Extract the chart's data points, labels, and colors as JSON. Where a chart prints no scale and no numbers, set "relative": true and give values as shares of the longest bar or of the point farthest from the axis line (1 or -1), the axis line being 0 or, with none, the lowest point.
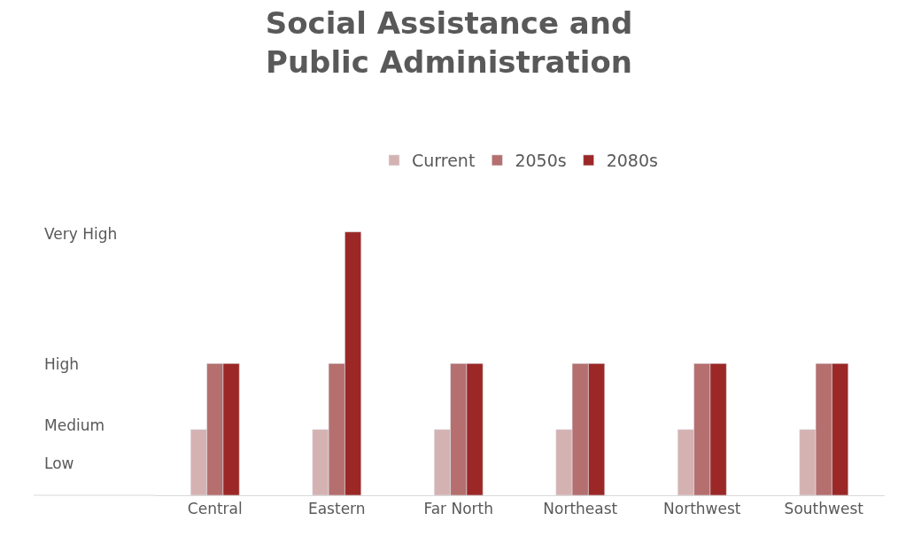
{
  "chart_data": {
    "type": "bar",
    "title": "Social Assistance and Public Administration",
    "categories": [
      "Central",
      "Eastern",
      "Far North",
      "Northeast",
      "Northwest",
      "Southwest"
    ],
    "series": [
      {
        "name": "Current",
        "color": "#d5b2b2",
        "values": [
          0.25,
          0.25,
          0.25,
          0.25,
          0.25,
          0.25
        ]
      },
      {
        "name": "2050s",
        "color": "#b46f6e",
        "values": [
          0.5,
          0.5,
          0.5,
          0.5,
          0.5,
          0.5
        ]
      },
      {
        "name": "2080s",
        "color": "#9b2826",
        "values": [
          0.5,
          1,
          0.5,
          0.5,
          0.5,
          0.5
        ]
      }
    ],
    "relative": true,
    "annotations": [
      "Low",
      "Medium",
      "High",
      "Very High"
    ],
    "legend": "top"
  }
}
